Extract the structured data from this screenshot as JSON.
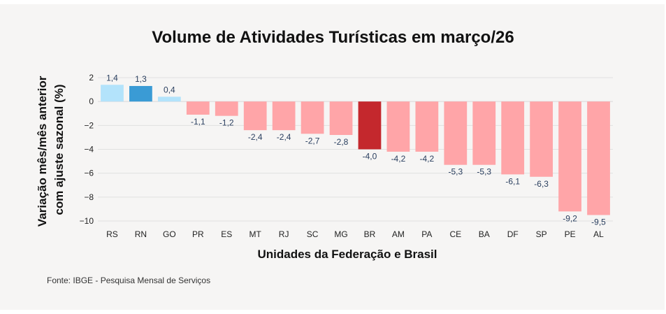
{
  "chart_data": {
    "type": "bar",
    "title": "Volume de Atividades Turísticas em março/26",
    "xlabel": "Unidades da Federação e Brasil",
    "ylabel_lines": [
      "Variação mês/mês anterior",
      "com ajuste sazonal (%)"
    ],
    "categories": [
      "RS",
      "RN",
      "GO",
      "PR",
      "ES",
      "MT",
      "RJ",
      "SC",
      "MG",
      "BR",
      "AM",
      "PA",
      "CE",
      "BA",
      "DF",
      "SP",
      "PE",
      "AL"
    ],
    "values": [
      1.4,
      1.3,
      0.4,
      -1.1,
      -1.2,
      -2.4,
      -2.4,
      -2.7,
      -2.8,
      -4.0,
      -4.2,
      -4.2,
      -5.3,
      -5.3,
      -6.1,
      -6.3,
      -9.2,
      -9.5
    ],
    "value_labels": [
      "1,4",
      "1,3",
      "0,4",
      "-1,1",
      "-1,2",
      "-2,4",
      "-2,4",
      "-2,7",
      "-2,8",
      "-4,0",
      "-4,2",
      "-4,2",
      "-5,3",
      "-5,3",
      "-6,1",
      "-6,3",
      "-9,2",
      "-9,5"
    ],
    "ylim": [
      -10,
      2
    ],
    "yticks": [
      2,
      0,
      -2,
      -4,
      -6,
      -8,
      -10
    ],
    "ytick_labels": [
      "2",
      "0",
      "−2",
      "−4",
      "−6",
      "−8",
      "−10"
    ],
    "colors": {
      "positive": "#b3e3fb",
      "positive_highlight": "#3a9bd5",
      "negative": "#ffa5a8",
      "negative_highlight": "#c4282d",
      "gridline": "#e0e0e0",
      "label_text": "#2a3f5f"
    },
    "highlight": [
      "RN",
      "BR"
    ],
    "grid": true,
    "legend": "none"
  },
  "source": "Fonte: IBGE - Pesquisa Mensal de Serviços"
}
